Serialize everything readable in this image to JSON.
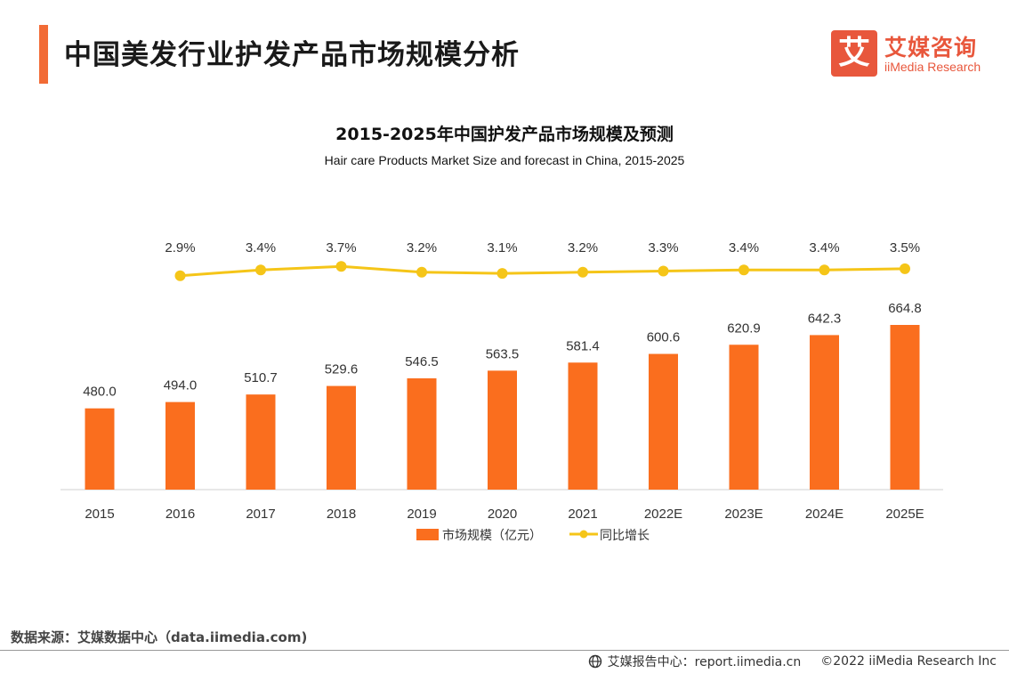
{
  "header": {
    "title": "中国美发行业护发产品市场规模分析",
    "logo": {
      "mark": "艾",
      "name_cn": "艾媒咨询",
      "name_en": "iiMedia Research",
      "color": "#e8573c"
    },
    "accent_color": "#f26b35"
  },
  "chart_data": {
    "type": "bar",
    "title": "2015-2025年中国护发产品市场规模及预测",
    "subtitle": "Hair care Products Market Size and forecast in China, 2015-2025",
    "categories": [
      "2015",
      "2016",
      "2017",
      "2018",
      "2019",
      "2020",
      "2021",
      "2022E",
      "2023E",
      "2024E",
      "2025E"
    ],
    "series": [
      {
        "name": "市场规模（亿元）",
        "type": "bar",
        "color": "#fa6e1e",
        "values": [
          480.0,
          494.0,
          510.7,
          529.6,
          546.5,
          563.5,
          581.4,
          600.6,
          620.9,
          642.3,
          664.8
        ],
        "labels": [
          "480.0",
          "494.0",
          "510.7",
          "529.6",
          "546.5",
          "563.5",
          "581.4",
          "600.6",
          "620.9",
          "642.3",
          "664.8"
        ]
      },
      {
        "name": "同比增长",
        "type": "line",
        "color": "#f5c518",
        "unit": "%",
        "values": [
          null,
          2.9,
          3.4,
          3.7,
          3.2,
          3.1,
          3.2,
          3.3,
          3.4,
          3.4,
          3.5
        ],
        "labels": [
          "",
          "2.9%",
          "3.4%",
          "3.7%",
          "3.2%",
          "3.1%",
          "3.2%",
          "3.3%",
          "3.4%",
          "3.4%",
          "3.5%"
        ]
      }
    ],
    "legend_position": "bottom-center",
    "grid": false
  },
  "footer": {
    "source": "数据来源：艾媒数据中心（data.iimedia.com)",
    "report_center": "艾媒报告中心：report.iimedia.cn",
    "copyright": "©2022  iiMedia Research  Inc",
    "icon": "globe-icon"
  }
}
